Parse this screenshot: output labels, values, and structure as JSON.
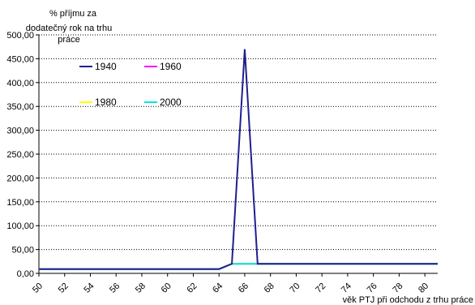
{
  "chart_data": {
    "type": "line",
    "title": "",
    "ylabel_lines": [
      "% příjmu za",
      "dodatečný rok na trhu",
      "práce"
    ],
    "xlabel": "věk PTJ při odchodu z trhu práce",
    "x": [
      50,
      51,
      52,
      53,
      54,
      55,
      56,
      57,
      58,
      59,
      60,
      61,
      62,
      63,
      64,
      65,
      66,
      67,
      68,
      69,
      70,
      71,
      72,
      73,
      74,
      75,
      76,
      77,
      78,
      79,
      80,
      81
    ],
    "x_tick_labels": [
      "50",
      "52",
      "54",
      "56",
      "58",
      "60",
      "62",
      "64",
      "66",
      "68",
      "70",
      "72",
      "74",
      "76",
      "78",
      "80"
    ],
    "y_tick_labels": [
      "0,00",
      "50,00",
      "100,00",
      "150,00",
      "200,00",
      "250,00",
      "300,00",
      "350,00",
      "400,00",
      "450,00",
      "500,00"
    ],
    "ylim": [
      0,
      500
    ],
    "grid": "horizontal dotted",
    "legend_placement": "upper-left inside plot",
    "series": [
      {
        "name": "1940",
        "color": "#1f1f8f",
        "values": [
          9,
          9,
          9,
          9,
          9,
          9,
          9,
          9,
          9,
          9,
          9,
          9,
          9,
          9,
          9,
          20,
          470,
          20,
          20,
          20,
          20,
          20,
          20,
          20,
          20,
          20,
          20,
          20,
          20,
          20,
          20,
          20
        ]
      },
      {
        "name": "1960",
        "color": "#ff00ff",
        "values": [
          9,
          9,
          9,
          9,
          9,
          9,
          9,
          9,
          9,
          9,
          9,
          9,
          9,
          9,
          9,
          20,
          20,
          20,
          20,
          20,
          20,
          20,
          20,
          20,
          20,
          20,
          20,
          20,
          20,
          20,
          20,
          20
        ]
      },
      {
        "name": "1980",
        "color": "#ffff00",
        "values": [
          9,
          9,
          9,
          9,
          9,
          9,
          9,
          9,
          9,
          9,
          9,
          9,
          9,
          9,
          9,
          20,
          20,
          20,
          20,
          20,
          20,
          20,
          20,
          20,
          20,
          20,
          20,
          20,
          20,
          20,
          20,
          20
        ]
      },
      {
        "name": "2000",
        "color": "#00e5e5",
        "values": [
          9,
          9,
          9,
          9,
          9,
          9,
          9,
          9,
          9,
          9,
          9,
          9,
          9,
          9,
          9,
          20,
          20,
          20,
          20,
          20,
          20,
          20,
          20,
          20,
          20,
          20,
          20,
          20,
          20,
          20,
          20,
          20
        ]
      }
    ]
  }
}
